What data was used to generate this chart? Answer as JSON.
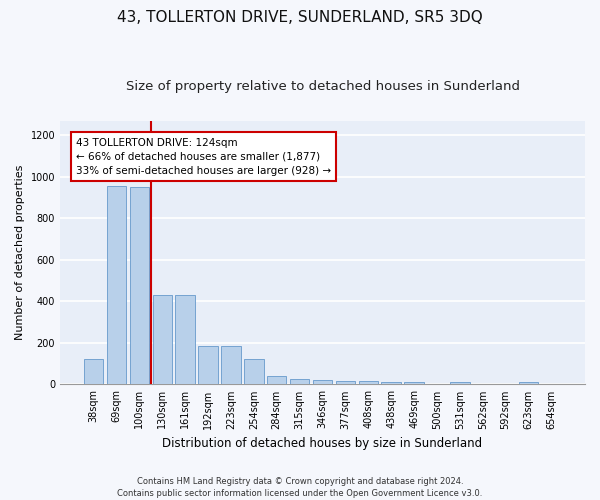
{
  "title": "43, TOLLERTON DRIVE, SUNDERLAND, SR5 3DQ",
  "subtitle": "Size of property relative to detached houses in Sunderland",
  "xlabel": "Distribution of detached houses by size in Sunderland",
  "ylabel": "Number of detached properties",
  "categories": [
    "38sqm",
    "69sqm",
    "100sqm",
    "130sqm",
    "161sqm",
    "192sqm",
    "223sqm",
    "254sqm",
    "284sqm",
    "315sqm",
    "346sqm",
    "377sqm",
    "408sqm",
    "438sqm",
    "469sqm",
    "500sqm",
    "531sqm",
    "562sqm",
    "592sqm",
    "623sqm",
    "654sqm"
  ],
  "values": [
    120,
    955,
    950,
    430,
    430,
    185,
    185,
    120,
    40,
    25,
    20,
    15,
    15,
    10,
    10,
    0,
    10,
    0,
    0,
    10,
    0
  ],
  "bar_color": "#b8d0ea",
  "bar_edge_color": "#6699cc",
  "vline_index": 2,
  "vline_color": "#cc0000",
  "annotation_line1": "43 TOLLERTON DRIVE: 124sqm",
  "annotation_line2": "← 66% of detached houses are smaller (1,877)",
  "annotation_line3": "33% of semi-detached houses are larger (928) →",
  "annotation_box_color": "#ffffff",
  "annotation_box_edge_color": "#cc0000",
  "ylim": [
    0,
    1270
  ],
  "yticks": [
    0,
    200,
    400,
    600,
    800,
    1000,
    1200
  ],
  "plot_bg_color": "#e8eef8",
  "fig_bg_color": "#f5f7fc",
  "grid_color": "#ffffff",
  "footer_line1": "Contains HM Land Registry data © Crown copyright and database right 2024.",
  "footer_line2": "Contains public sector information licensed under the Open Government Licence v3.0.",
  "title_fontsize": 11,
  "subtitle_fontsize": 9.5,
  "xlabel_fontsize": 8.5,
  "ylabel_fontsize": 8,
  "tick_fontsize": 7,
  "annotation_fontsize": 7.5,
  "footer_fontsize": 6
}
